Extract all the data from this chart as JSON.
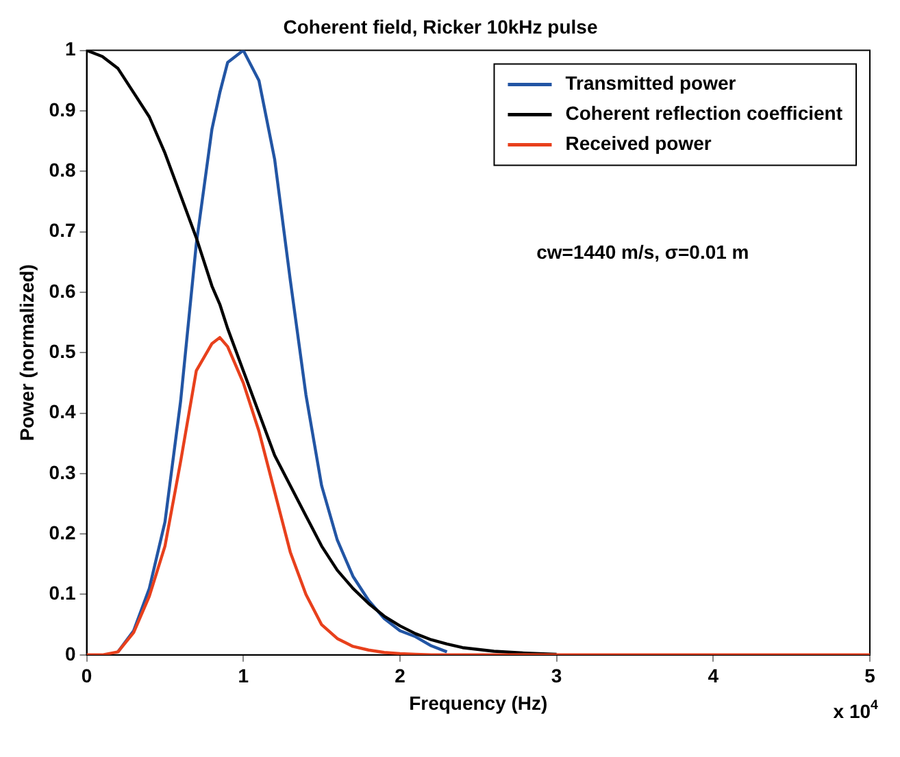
{
  "chart_data": {
    "type": "line",
    "title": "Coherent field, Ricker 10kHz pulse",
    "xlabel": "Frequency (Hz)",
    "ylabel": "Power (normalized)",
    "x": [
      0,
      0.1,
      0.2,
      0.3,
      0.4,
      0.5,
      0.6,
      0.7,
      0.8,
      0.85,
      0.9,
      1.0,
      1.1,
      1.2,
      1.3,
      1.4,
      1.5,
      1.6,
      1.7,
      1.8,
      1.9,
      2.0,
      2.1,
      2.2,
      2.3,
      2.4,
      2.6,
      2.8,
      3.0,
      3.5,
      4,
      4.5,
      5
    ],
    "series": [
      {
        "name": "Transmitted power",
        "color": "#2255a4",
        "values": [
          null,
          null,
          0.005,
          0.04,
          0.11,
          0.22,
          0.42,
          0.68,
          0.87,
          0.93,
          0.98,
          1.0,
          0.95,
          0.82,
          0.62,
          0.43,
          0.28,
          0.19,
          0.13,
          0.09,
          0.06,
          0.04,
          0.03,
          0.015,
          0.005,
          null,
          null,
          null,
          null,
          null,
          null,
          null,
          null
        ]
      },
      {
        "name": "Coherent reflection coefficient",
        "color": "#000000",
        "values": [
          1,
          0.99,
          0.97,
          0.93,
          0.89,
          0.83,
          0.76,
          0.69,
          0.61,
          0.58,
          0.54,
          0.47,
          0.4,
          0.33,
          0.28,
          0.23,
          0.18,
          0.14,
          0.11,
          0.085,
          0.064,
          0.048,
          0.035,
          0.025,
          0.018,
          0.012,
          0.006,
          0.003,
          0.001,
          null,
          null,
          null,
          null
        ]
      },
      {
        "name": "Received power",
        "color": "#e8401c",
        "values": [
          0,
          0,
          0.005,
          0.037,
          0.097,
          0.18,
          0.32,
          0.47,
          0.515,
          0.525,
          0.51,
          0.45,
          0.37,
          0.27,
          0.17,
          0.1,
          0.05,
          0.027,
          0.014,
          0.008,
          0.004,
          0.002,
          0.001,
          0,
          0,
          0,
          0,
          0,
          0,
          0,
          0,
          0,
          0
        ]
      }
    ],
    "xlim": [
      0,
      5
    ],
    "xticks": [
      0,
      1,
      2,
      3,
      4,
      5
    ],
    "ylim": [
      0,
      1
    ],
    "yticks": [
      0,
      0.1,
      0.2,
      0.3,
      0.4,
      0.5,
      0.6,
      0.7,
      0.8,
      0.9,
      1
    ],
    "grid": false,
    "legend": "top right",
    "marker": "none",
    "line_style": "solid",
    "annotations": [
      "cw=1440 m/s, σ=0.01 m",
      "x 10$^{4}$"
    ]
  }
}
